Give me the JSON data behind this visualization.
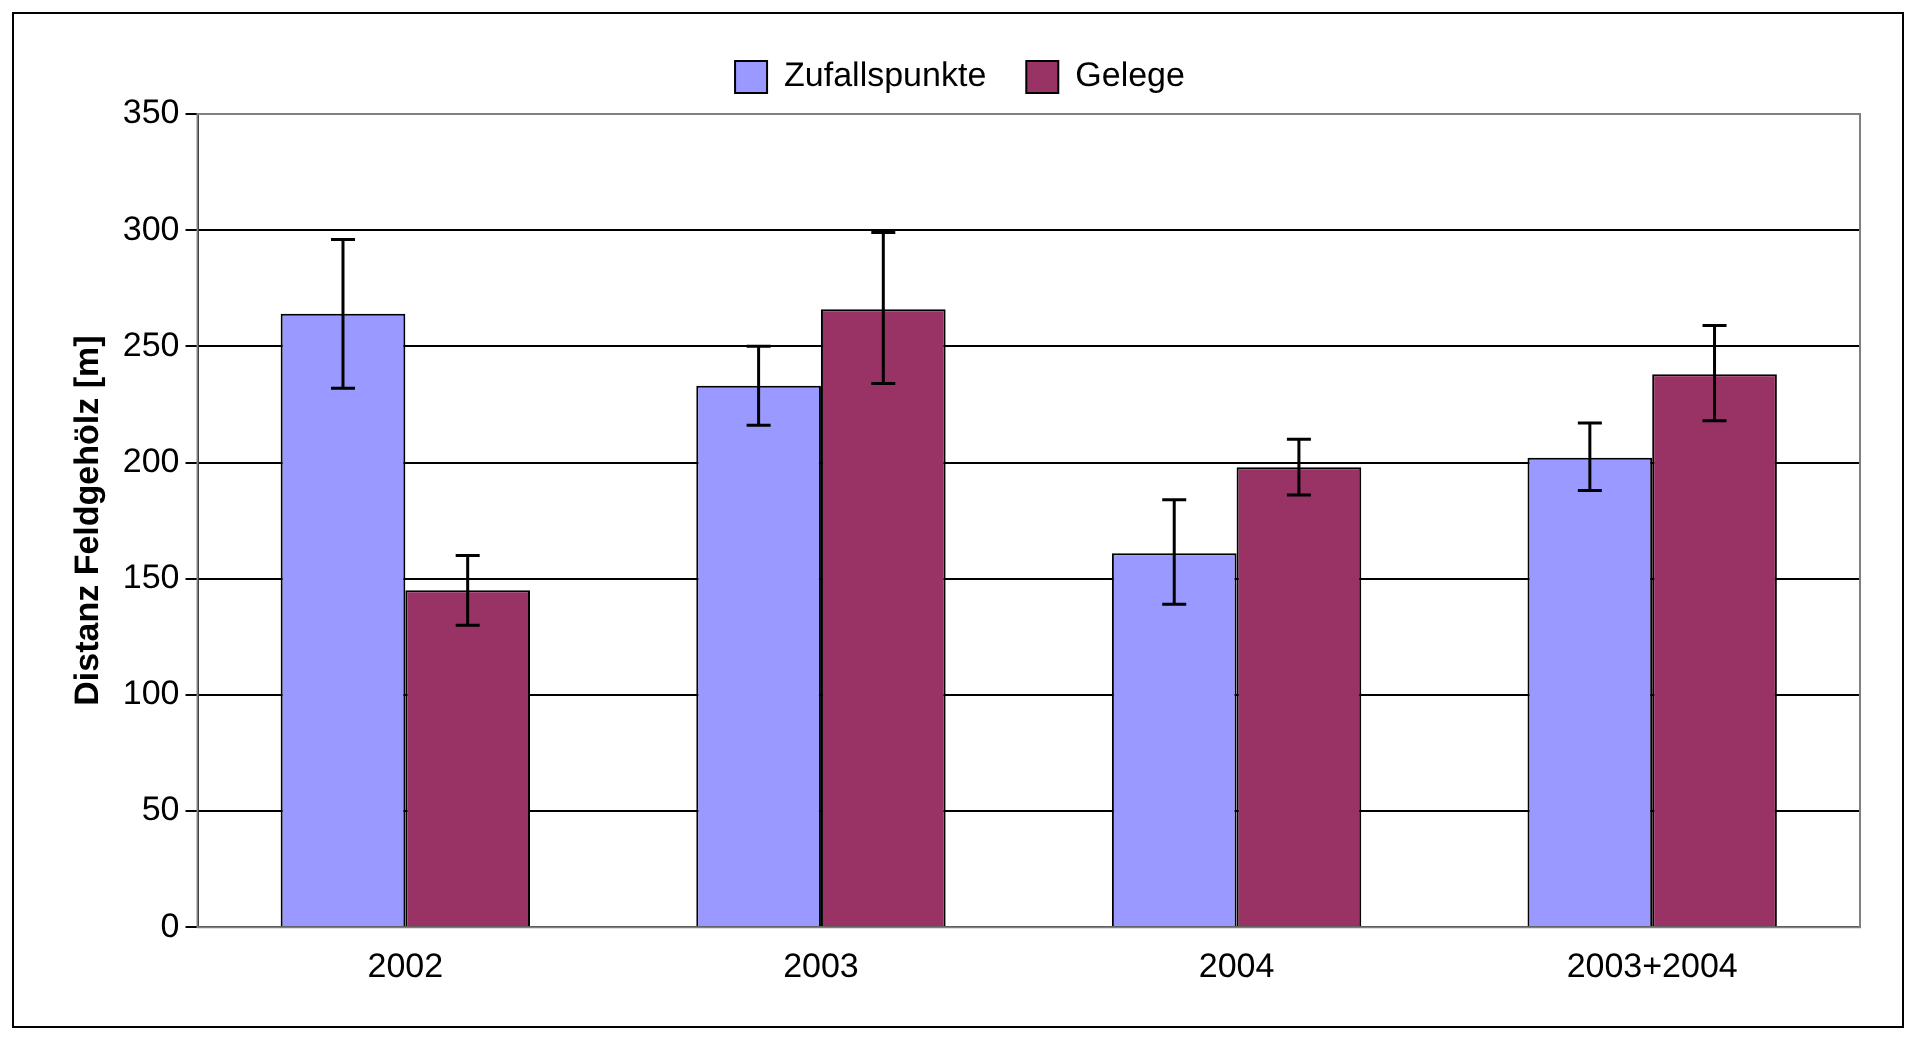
{
  "chart_data": {
    "type": "bar",
    "ylabel": "Distanz Feldgehölz [m]",
    "categories": [
      "2002",
      "2003",
      "2004",
      "2003+2004"
    ],
    "series": [
      {
        "name": "Zufallspunkte",
        "color": "#9999ff",
        "values": [
          264,
          233,
          161,
          202
        ],
        "errors": [
          [
            232,
            296
          ],
          [
            216,
            250
          ],
          [
            139,
            184
          ],
          [
            188,
            217
          ]
        ]
      },
      {
        "name": "Gelege",
        "color": "#993366",
        "values": [
          145,
          266,
          198,
          238
        ],
        "errors": [
          [
            130,
            160
          ],
          [
            234,
            299
          ],
          [
            186,
            210
          ],
          [
            218,
            259
          ]
        ]
      }
    ],
    "ylim": [
      0,
      350
    ],
    "yticks": [
      0,
      50,
      100,
      150,
      200,
      250,
      300,
      350
    ],
    "grid": "y",
    "legend": "top"
  }
}
